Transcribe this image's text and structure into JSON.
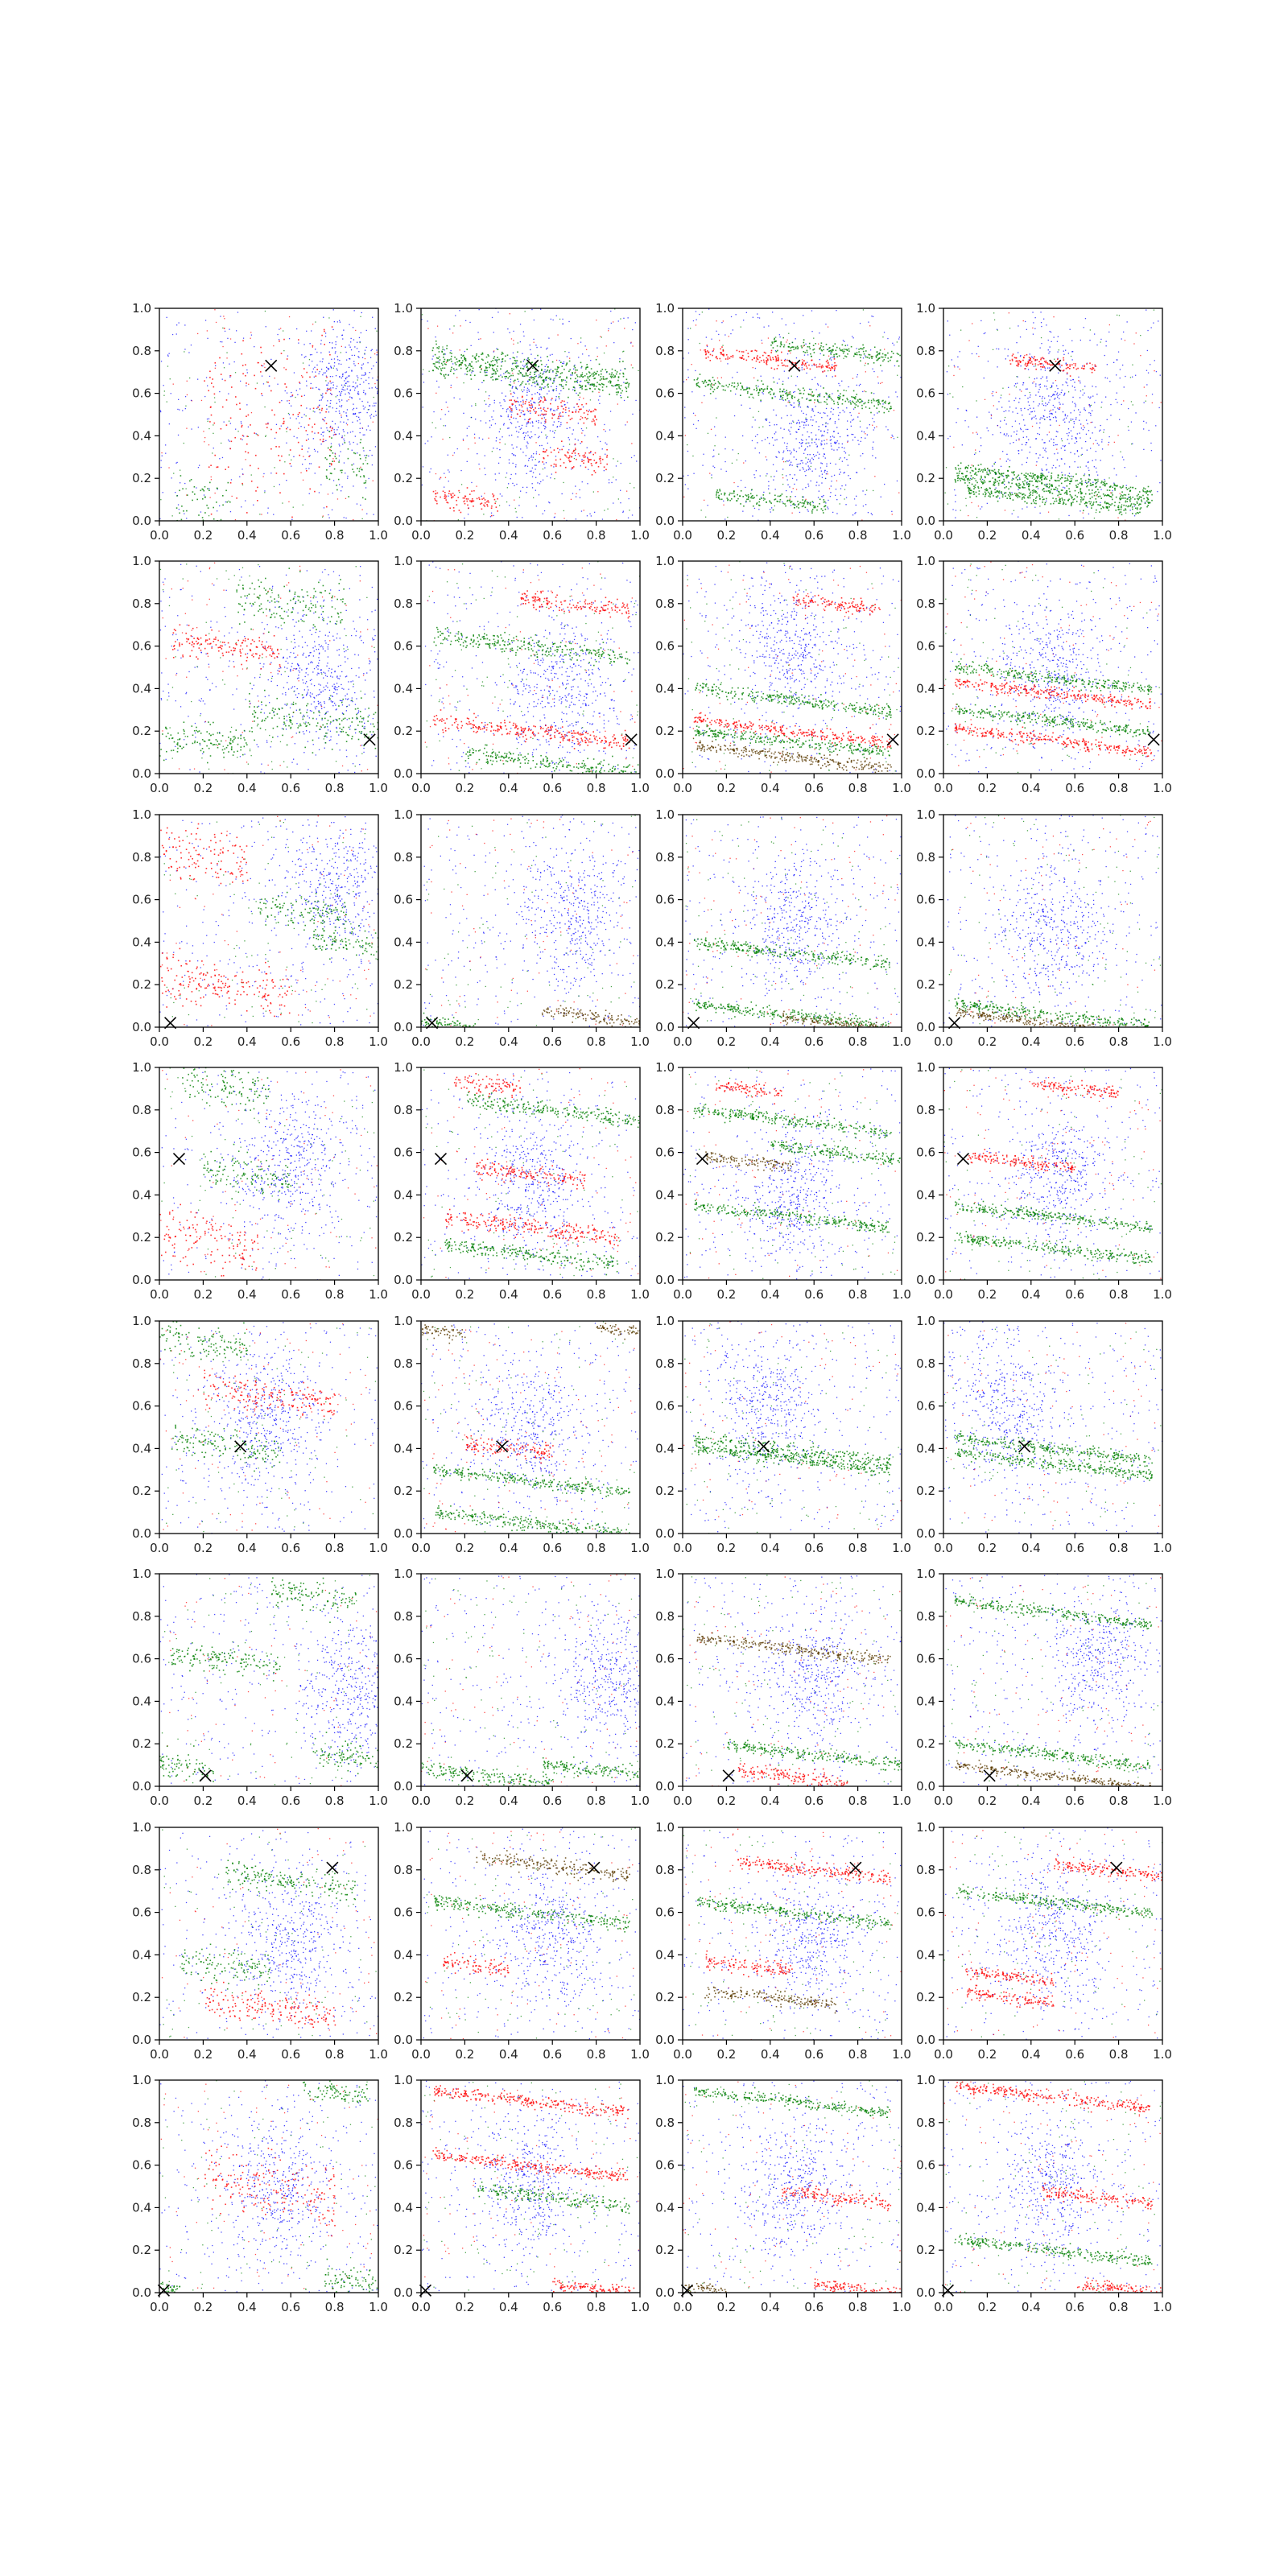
{
  "figure": {
    "rows": 8,
    "cols": 4
  },
  "colors": {
    "blue": "#0000ff",
    "red": "#ff0000",
    "green": "#008000",
    "dark": "#5a3a00",
    "marker": "#000000",
    "axes": "#000000",
    "background": "#ffffff"
  },
  "chart_data": {
    "type": "scatter",
    "xlim": [
      0.0,
      1.0
    ],
    "ylim": [
      0.0,
      1.0
    ],
    "xticks": [
      "0.0",
      "0.2",
      "0.4",
      "0.6",
      "0.8",
      "1.0"
    ],
    "yticks": [
      "0.0",
      "0.2",
      "0.4",
      "0.6",
      "0.8",
      "1.0"
    ],
    "grid": false,
    "legend": "none",
    "marker_symbol": "x",
    "markers": [
      {
        "x": 0.51,
        "y": 0.73
      },
      {
        "x": 0.96,
        "y": 0.16
      },
      {
        "x": 0.05,
        "y": 0.02
      },
      {
        "x": 0.09,
        "y": 0.57
      },
      {
        "x": 0.37,
        "y": 0.41
      },
      {
        "x": 0.21,
        "y": 0.05
      },
      {
        "x": 0.79,
        "y": 0.81
      },
      {
        "x": 0.02,
        "y": 0.01
      }
    ],
    "panels": [
      {
        "row": 0,
        "col": 0,
        "blue_blob": [
          0.85,
          0.6
        ],
        "bands": [
          [
            0.2,
            0.05,
            "green",
            0.25,
            0.3
          ],
          [
            0.85,
            0.25,
            "green",
            0.2,
            0.2
          ],
          [
            0.5,
            0.5,
            "red",
            0.6,
            0.6
          ]
        ]
      },
      {
        "row": 0,
        "col": 1,
        "blue_blob": [
          0.5,
          0.5
        ],
        "bands": [
          [
            0.5,
            0.73,
            "green",
            0.9,
            0.08
          ],
          [
            0.5,
            0.68,
            "green",
            0.9,
            0.08
          ],
          [
            0.6,
            0.52,
            "red",
            0.4,
            0.08
          ],
          [
            0.7,
            0.3,
            "red",
            0.3,
            0.08
          ],
          [
            0.2,
            0.1,
            "red",
            0.3,
            0.08
          ]
        ]
      },
      {
        "row": 0,
        "col": 2,
        "blue_blob": [
          0.6,
          0.4
        ],
        "bands": [
          [
            0.4,
            0.76,
            "red",
            0.6,
            0.05
          ],
          [
            0.7,
            0.8,
            "green",
            0.6,
            0.05
          ],
          [
            0.5,
            0.6,
            "green",
            0.9,
            0.05
          ],
          [
            0.4,
            0.1,
            "green",
            0.5,
            0.05
          ]
        ]
      },
      {
        "row": 0,
        "col": 3,
        "blue_blob": [
          0.5,
          0.5
        ],
        "bands": [
          [
            0.5,
            0.74,
            "red",
            0.4,
            0.04
          ],
          [
            0.5,
            0.2,
            "green",
            0.9,
            0.04
          ],
          [
            0.5,
            0.15,
            "green",
            0.9,
            0.04
          ],
          [
            0.5,
            0.1,
            "green",
            0.8,
            0.04
          ]
        ]
      },
      {
        "row": 1,
        "col": 0,
        "blue_blob": [
          0.75,
          0.45
        ],
        "bands": [
          [
            0.6,
            0.8,
            "green",
            0.5,
            0.15
          ],
          [
            0.7,
            0.25,
            "green",
            0.6,
            0.15
          ],
          [
            0.2,
            0.15,
            "green",
            0.4,
            0.1
          ],
          [
            0.3,
            0.6,
            "red",
            0.5,
            0.1
          ]
        ]
      },
      {
        "row": 1,
        "col": 1,
        "blue_blob": [
          0.65,
          0.4
        ],
        "bands": [
          [
            0.7,
            0.8,
            "red",
            0.5,
            0.06
          ],
          [
            0.5,
            0.6,
            "green",
            0.9,
            0.06
          ],
          [
            0.5,
            0.2,
            "red",
            0.9,
            0.06
          ],
          [
            0.6,
            0.05,
            "green",
            0.8,
            0.05
          ]
        ]
      },
      {
        "row": 1,
        "col": 2,
        "blue_blob": [
          0.5,
          0.6
        ],
        "bands": [
          [
            0.5,
            0.35,
            "green",
            0.9,
            0.04
          ],
          [
            0.5,
            0.2,
            "red",
            0.9,
            0.04
          ],
          [
            0.5,
            0.15,
            "green",
            0.9,
            0.04
          ],
          [
            0.5,
            0.08,
            "dark",
            0.9,
            0.04
          ],
          [
            0.7,
            0.8,
            "red",
            0.4,
            0.04
          ]
        ]
      },
      {
        "row": 1,
        "col": 3,
        "blue_blob": [
          0.5,
          0.5
        ],
        "bands": [
          [
            0.5,
            0.45,
            "green",
            0.9,
            0.04
          ],
          [
            0.5,
            0.38,
            "red",
            0.9,
            0.04
          ],
          [
            0.5,
            0.25,
            "green",
            0.9,
            0.04
          ],
          [
            0.5,
            0.16,
            "red",
            0.9,
            0.04
          ]
        ]
      },
      {
        "row": 2,
        "col": 0,
        "blue_blob": [
          0.8,
          0.65
        ],
        "bands": [
          [
            0.65,
            0.55,
            "green",
            0.4,
            0.1
          ],
          [
            0.85,
            0.4,
            "green",
            0.3,
            0.1
          ],
          [
            0.3,
            0.2,
            "red",
            0.6,
            0.15
          ],
          [
            0.2,
            0.8,
            "red",
            0.4,
            0.2
          ]
        ]
      },
      {
        "row": 2,
        "col": 1,
        "blue_blob": [
          0.7,
          0.55
        ],
        "bands": [
          [
            0.1,
            0.02,
            "green",
            0.3,
            0.04
          ],
          [
            0.8,
            0.05,
            "dark",
            0.5,
            0.04
          ]
        ]
      },
      {
        "row": 2,
        "col": 2,
        "blue_blob": [
          0.5,
          0.5
        ],
        "bands": [
          [
            0.5,
            0.06,
            "green",
            0.9,
            0.04
          ],
          [
            0.5,
            0.35,
            "green",
            0.9,
            0.04
          ],
          [
            0.7,
            0.02,
            "dark",
            0.5,
            0.03
          ]
        ]
      },
      {
        "row": 2,
        "col": 3,
        "blue_blob": [
          0.5,
          0.45
        ],
        "bands": [
          [
            0.5,
            0.06,
            "green",
            0.9,
            0.04
          ],
          [
            0.5,
            0.02,
            "dark",
            0.9,
            0.03
          ]
        ]
      },
      {
        "row": 3,
        "col": 0,
        "blue_blob": [
          0.6,
          0.55
        ],
        "bands": [
          [
            0.3,
            0.92,
            "green",
            0.4,
            0.15
          ],
          [
            0.4,
            0.5,
            "green",
            0.4,
            0.12
          ],
          [
            0.2,
            0.2,
            "red",
            0.5,
            0.2
          ]
        ]
      },
      {
        "row": 3,
        "col": 1,
        "blue_blob": [
          0.5,
          0.45
        ],
        "bands": [
          [
            0.3,
            0.92,
            "red",
            0.3,
            0.06
          ],
          [
            0.5,
            0.5,
            "red",
            0.5,
            0.06
          ],
          [
            0.6,
            0.8,
            "green",
            0.8,
            0.05
          ],
          [
            0.5,
            0.25,
            "red",
            0.8,
            0.06
          ],
          [
            0.5,
            0.12,
            "green",
            0.8,
            0.05
          ]
        ]
      },
      {
        "row": 3,
        "col": 2,
        "blue_blob": [
          0.5,
          0.4
        ],
        "bands": [
          [
            0.3,
            0.56,
            "dark",
            0.4,
            0.04
          ],
          [
            0.7,
            0.6,
            "green",
            0.6,
            0.04
          ],
          [
            0.3,
            0.9,
            "red",
            0.3,
            0.05
          ],
          [
            0.5,
            0.75,
            "green",
            0.9,
            0.04
          ],
          [
            0.5,
            0.3,
            "green",
            0.9,
            0.04
          ]
        ]
      },
      {
        "row": 3,
        "col": 3,
        "blue_blob": [
          0.5,
          0.5
        ],
        "bands": [
          [
            0.35,
            0.56,
            "red",
            0.5,
            0.04
          ],
          [
            0.5,
            0.3,
            "green",
            0.9,
            0.04
          ],
          [
            0.5,
            0.15,
            "green",
            0.9,
            0.04
          ],
          [
            0.6,
            0.9,
            "red",
            0.4,
            0.04
          ]
        ]
      },
      {
        "row": 4,
        "col": 0,
        "blue_blob": [
          0.5,
          0.55
        ],
        "bands": [
          [
            0.2,
            0.9,
            "green",
            0.4,
            0.1
          ],
          [
            0.3,
            0.42,
            "green",
            0.5,
            0.1
          ],
          [
            0.5,
            0.65,
            "red",
            0.6,
            0.1
          ]
        ]
      },
      {
        "row": 4,
        "col": 1,
        "blue_blob": [
          0.5,
          0.5
        ],
        "bands": [
          [
            0.1,
            0.95,
            "dark",
            0.2,
            0.05
          ],
          [
            0.9,
            0.96,
            "dark",
            0.2,
            0.04
          ],
          [
            0.4,
            0.4,
            "red",
            0.4,
            0.06
          ],
          [
            0.5,
            0.05,
            "green",
            0.9,
            0.05
          ],
          [
            0.5,
            0.25,
            "green",
            0.9,
            0.04
          ]
        ]
      },
      {
        "row": 4,
        "col": 2,
        "blue_blob": [
          0.4,
          0.6
        ],
        "bands": [
          [
            0.5,
            0.39,
            "green",
            0.9,
            0.05
          ],
          [
            0.5,
            0.35,
            "green",
            0.9,
            0.04
          ]
        ]
      },
      {
        "row": 4,
        "col": 3,
        "blue_blob": [
          0.3,
          0.6
        ],
        "bands": [
          [
            0.5,
            0.4,
            "green",
            0.9,
            0.04
          ],
          [
            0.5,
            0.33,
            "green",
            0.9,
            0.04
          ]
        ]
      },
      {
        "row": 5,
        "col": 0,
        "blue_blob": [
          0.88,
          0.45
        ],
        "bands": [
          [
            0.7,
            0.9,
            "green",
            0.4,
            0.1
          ],
          [
            0.3,
            0.6,
            "green",
            0.5,
            0.08
          ],
          [
            0.1,
            0.1,
            "green",
            0.3,
            0.1
          ],
          [
            0.85,
            0.15,
            "green",
            0.3,
            0.1
          ]
        ]
      },
      {
        "row": 5,
        "col": 1,
        "blue_blob": [
          0.85,
          0.5
        ],
        "bands": [
          [
            0.3,
            0.05,
            "green",
            0.6,
            0.05
          ],
          [
            0.8,
            0.08,
            "green",
            0.5,
            0.05
          ]
        ]
      },
      {
        "row": 5,
        "col": 2,
        "blue_blob": [
          0.6,
          0.5
        ],
        "bands": [
          [
            0.5,
            0.65,
            "dark",
            0.9,
            0.04
          ],
          [
            0.5,
            0.05,
            "red",
            0.5,
            0.05
          ],
          [
            0.6,
            0.15,
            "green",
            0.8,
            0.04
          ]
        ]
      },
      {
        "row": 5,
        "col": 3,
        "blue_blob": [
          0.7,
          0.6
        ],
        "bands": [
          [
            0.5,
            0.05,
            "dark",
            0.9,
            0.03
          ],
          [
            0.5,
            0.15,
            "green",
            0.9,
            0.04
          ],
          [
            0.5,
            0.82,
            "green",
            0.9,
            0.04
          ]
        ]
      },
      {
        "row": 6,
        "col": 0,
        "blue_blob": [
          0.6,
          0.45
        ],
        "bands": [
          [
            0.3,
            0.35,
            "green",
            0.4,
            0.12
          ],
          [
            0.6,
            0.75,
            "green",
            0.6,
            0.08
          ],
          [
            0.5,
            0.15,
            "red",
            0.6,
            0.1
          ]
        ]
      },
      {
        "row": 6,
        "col": 1,
        "blue_blob": [
          0.6,
          0.5
        ],
        "bands": [
          [
            0.6,
            0.82,
            "dark",
            0.7,
            0.05
          ],
          [
            0.25,
            0.35,
            "red",
            0.3,
            0.06
          ],
          [
            0.5,
            0.6,
            "green",
            0.9,
            0.05
          ]
        ]
      },
      {
        "row": 6,
        "col": 2,
        "blue_blob": [
          0.6,
          0.5
        ],
        "bands": [
          [
            0.6,
            0.8,
            "red",
            0.7,
            0.04
          ],
          [
            0.3,
            0.35,
            "red",
            0.4,
            0.05
          ],
          [
            0.4,
            0.2,
            "dark",
            0.6,
            0.04
          ],
          [
            0.5,
            0.6,
            "green",
            0.9,
            0.04
          ]
        ]
      },
      {
        "row": 6,
        "col": 3,
        "blue_blob": [
          0.5,
          0.5
        ],
        "bands": [
          [
            0.75,
            0.8,
            "red",
            0.5,
            0.04
          ],
          [
            0.5,
            0.65,
            "green",
            0.9,
            0.04
          ],
          [
            0.3,
            0.3,
            "red",
            0.4,
            0.04
          ],
          [
            0.3,
            0.2,
            "red",
            0.4,
            0.04
          ]
        ]
      },
      {
        "row": 7,
        "col": 0,
        "blue_blob": [
          0.55,
          0.5
        ],
        "bands": [
          [
            0.9,
            0.05,
            "green",
            0.3,
            0.1
          ],
          [
            0.05,
            0.02,
            "green",
            0.1,
            0.05
          ],
          [
            0.8,
            0.95,
            "green",
            0.3,
            0.06
          ],
          [
            0.5,
            0.5,
            "red",
            0.6,
            0.2
          ]
        ]
      },
      {
        "row": 7,
        "col": 1,
        "blue_blob": [
          0.5,
          0.5
        ],
        "bands": [
          [
            0.6,
            0.45,
            "green",
            0.7,
            0.05
          ],
          [
            0.5,
            0.9,
            "red",
            0.9,
            0.04
          ],
          [
            0.8,
            0.02,
            "red",
            0.4,
            0.04
          ],
          [
            0.5,
            0.6,
            "red",
            0.9,
            0.04
          ]
        ]
      },
      {
        "row": 7,
        "col": 2,
        "blue_blob": [
          0.5,
          0.5
        ],
        "bands": [
          [
            0.7,
            0.45,
            "red",
            0.5,
            0.05
          ],
          [
            0.8,
            0.02,
            "red",
            0.4,
            0.04
          ],
          [
            0.1,
            0.02,
            "dark",
            0.2,
            0.04
          ],
          [
            0.5,
            0.9,
            "green",
            0.9,
            0.04
          ]
        ]
      },
      {
        "row": 7,
        "col": 3,
        "blue_blob": [
          0.5,
          0.5
        ],
        "bands": [
          [
            0.7,
            0.45,
            "red",
            0.5,
            0.05
          ],
          [
            0.8,
            0.02,
            "red",
            0.4,
            0.04
          ],
          [
            0.5,
            0.2,
            "green",
            0.9,
            0.04
          ],
          [
            0.5,
            0.92,
            "red",
            0.9,
            0.04
          ]
        ]
      }
    ]
  }
}
